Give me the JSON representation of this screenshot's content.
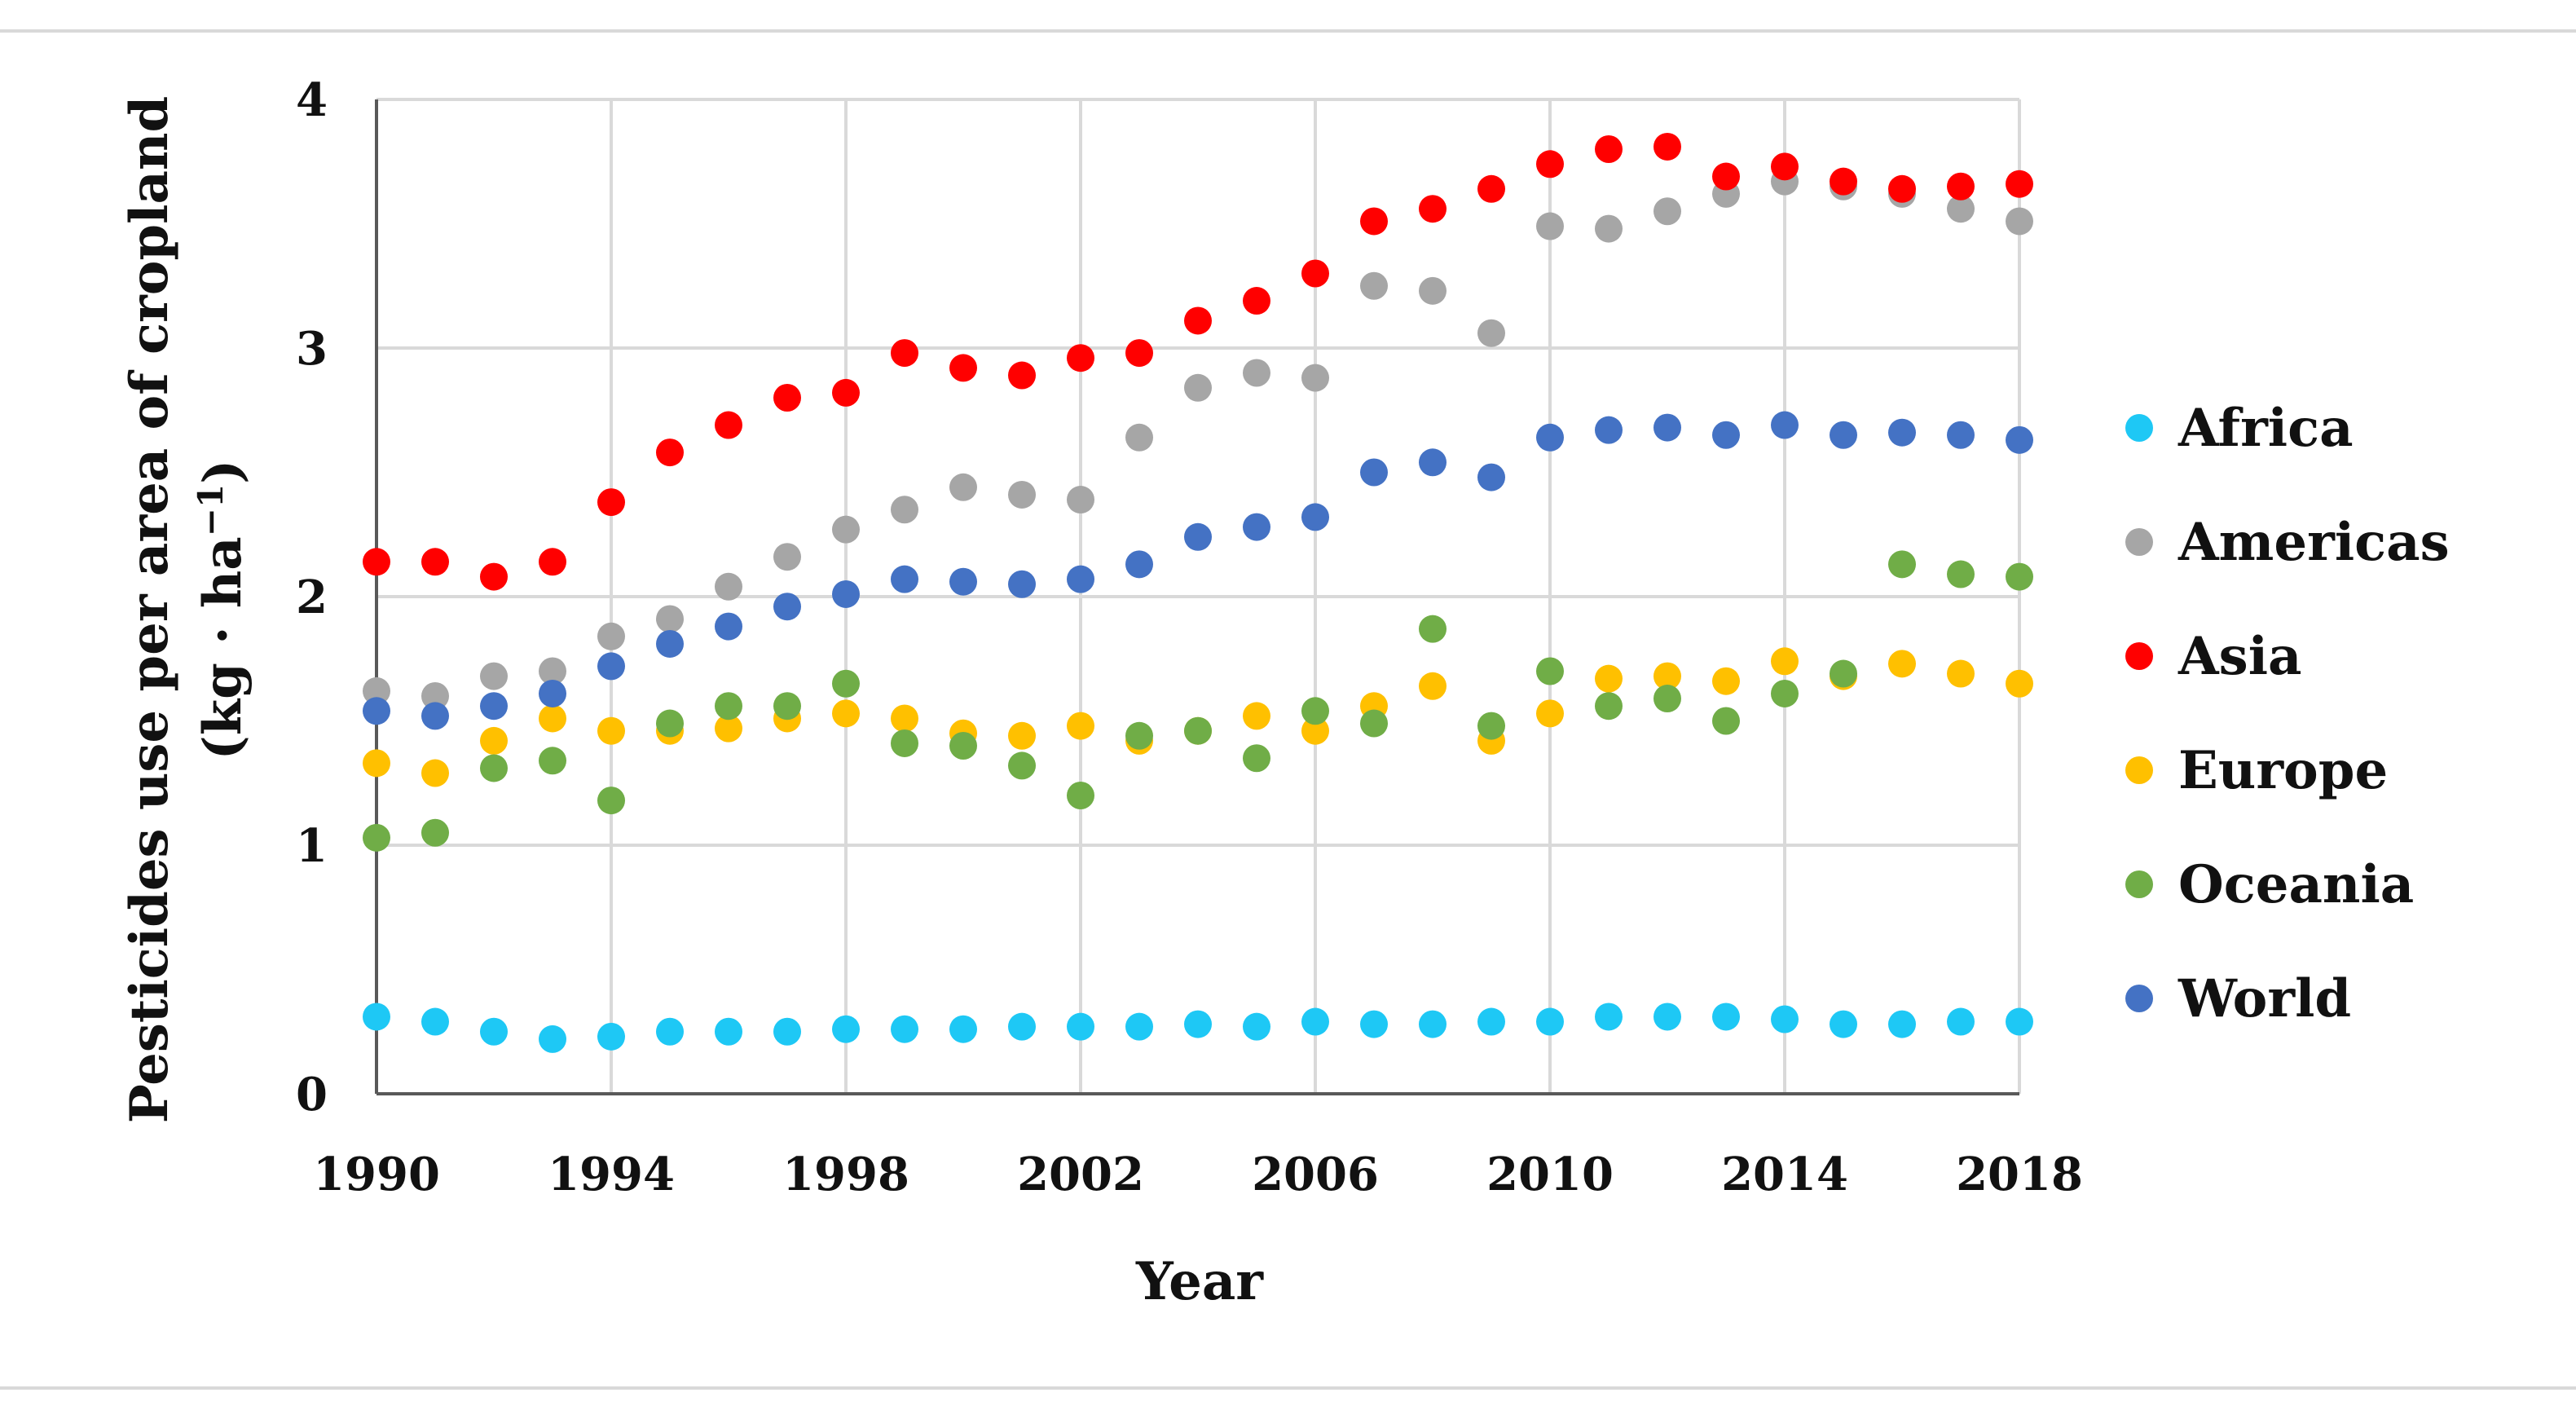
{
  "chart_data": {
    "type": "scatter",
    "title": "",
    "xlabel": "Year",
    "ylabel": "Pesticides use per area of cropland",
    "ylabel_unit": "(kg · ha",
    "ylabel_unit_exp": "−1",
    "ylabel_unit_close": ")",
    "xlim": [
      1990,
      2018
    ],
    "ylim": [
      0,
      4
    ],
    "x_ticks": [
      1990,
      1994,
      1998,
      2002,
      2006,
      2010,
      2014,
      2018
    ],
    "y_ticks": [
      0,
      1,
      2,
      3,
      4
    ],
    "x_tick_labels": [
      "1990",
      "1994",
      "1998",
      "2002",
      "2006",
      "2010",
      "2014",
      "2018"
    ],
    "y_tick_labels": [
      "0",
      "1",
      "2",
      "3",
      "4"
    ],
    "grid": true,
    "legend_position": "right",
    "x": [
      1990,
      1991,
      1992,
      1993,
      1994,
      1995,
      1996,
      1997,
      1998,
      1999,
      2000,
      2001,
      2002,
      2003,
      2004,
      2005,
      2006,
      2007,
      2008,
      2009,
      2010,
      2011,
      2012,
      2013,
      2014,
      2015,
      2016,
      2017,
      2018
    ],
    "series": [
      {
        "name": "Africa",
        "color": "#1ec8f5",
        "values": [
          0.31,
          0.29,
          0.25,
          0.22,
          0.23,
          0.25,
          0.25,
          0.25,
          0.26,
          0.26,
          0.26,
          0.27,
          0.27,
          0.27,
          0.28,
          0.27,
          0.29,
          0.28,
          0.28,
          0.29,
          0.29,
          0.31,
          0.31,
          0.31,
          0.3,
          0.28,
          0.28,
          0.29,
          0.29
        ]
      },
      {
        "name": "Americas",
        "color": "#a6a6a6",
        "values": [
          1.62,
          1.6,
          1.68,
          1.7,
          1.84,
          1.91,
          2.04,
          2.16,
          2.27,
          2.35,
          2.44,
          2.41,
          2.39,
          2.64,
          2.84,
          2.9,
          2.88,
          3.25,
          3.23,
          3.06,
          3.49,
          3.48,
          3.55,
          3.62,
          3.67,
          3.65,
          3.62,
          3.56,
          3.51
        ]
      },
      {
        "name": "Asia",
        "color": "#ff0000",
        "values": [
          2.14,
          2.14,
          2.08,
          2.14,
          2.38,
          2.58,
          2.69,
          2.8,
          2.82,
          2.98,
          2.92,
          2.89,
          2.96,
          2.98,
          3.11,
          3.19,
          3.3,
          3.51,
          3.56,
          3.64,
          3.74,
          3.8,
          3.81,
          3.69,
          3.73,
          3.67,
          3.64,
          3.65,
          3.66
        ]
      },
      {
        "name": "Europe",
        "color": "#ffc000",
        "values": [
          1.33,
          1.29,
          1.42,
          1.51,
          1.46,
          1.46,
          1.47,
          1.51,
          1.53,
          1.51,
          1.45,
          1.44,
          1.48,
          1.42,
          1.46,
          1.52,
          1.46,
          1.56,
          1.64,
          1.42,
          1.53,
          1.67,
          1.68,
          1.66,
          1.74,
          1.68,
          1.73,
          1.69,
          1.65
        ]
      },
      {
        "name": "Oceania",
        "color": "#70ad47",
        "values": [
          1.03,
          1.05,
          1.31,
          1.34,
          1.18,
          1.49,
          1.56,
          1.56,
          1.65,
          1.41,
          1.4,
          1.32,
          1.2,
          1.44,
          1.46,
          1.35,
          1.54,
          1.49,
          1.87,
          1.48,
          1.7,
          1.56,
          1.59,
          1.5,
          1.61,
          1.69,
          2.13,
          2.09,
          2.08
        ]
      },
      {
        "name": "World",
        "color": "#4472c4",
        "values": [
          1.54,
          1.52,
          1.56,
          1.61,
          1.72,
          1.81,
          1.88,
          1.96,
          2.01,
          2.07,
          2.06,
          2.05,
          2.07,
          2.13,
          2.24,
          2.28,
          2.32,
          2.5,
          2.54,
          2.48,
          2.64,
          2.67,
          2.68,
          2.65,
          2.69,
          2.65,
          2.66,
          2.65,
          2.63
        ]
      }
    ]
  }
}
